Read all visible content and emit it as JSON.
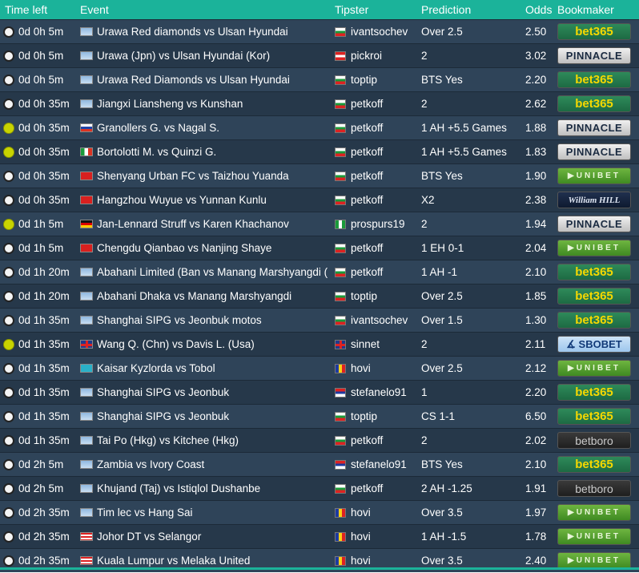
{
  "headers": {
    "time_left": "Time left",
    "event": "Event",
    "tipster": "Tipster",
    "prediction": "Prediction",
    "odds": "Odds",
    "bookmaker": "Bookmaker"
  },
  "rows": [
    {
      "sport": "football-icon",
      "time": "0d 0h 5m",
      "flag": "world",
      "event": "Urawa Red diamonds vs Ulsan Hyundai",
      "tflag": "bulgaria",
      "tipster": "ivantsochev",
      "prediction": "Over 2.5",
      "odds": "2.50",
      "bookmaker": "bet365"
    },
    {
      "sport": "football-icon",
      "time": "0d 0h 5m",
      "flag": "world",
      "event": "Urawa (Jpn) vs Ulsan Hyundai (Kor)",
      "tflag": "austria",
      "tipster": "pickroi",
      "prediction": "2",
      "odds": "3.02",
      "bookmaker": "PINNACLE"
    },
    {
      "sport": "football-icon",
      "time": "0d 0h 5m",
      "flag": "world",
      "event": "Urawa Red Diamonds vs Ulsan Hyundai",
      "tflag": "bulgaria",
      "tipster": "toptip",
      "prediction": "BTS Yes",
      "odds": "2.20",
      "bookmaker": "bet365"
    },
    {
      "sport": "football-icon",
      "time": "0d 0h 35m",
      "flag": "world",
      "event": "Jiangxi Liansheng vs Kunshan",
      "tflag": "bulgaria",
      "tipster": "petkoff",
      "prediction": "2",
      "odds": "2.62",
      "bookmaker": "bet365"
    },
    {
      "sport": "tennis-icon",
      "time": "0d 0h 35m",
      "flag": "slovakia",
      "event": "Granollers G. vs Nagal S.",
      "tflag": "bulgaria",
      "tipster": "petkoff",
      "prediction": "1 AH +5.5 Games",
      "odds": "1.88",
      "bookmaker": "PINNACLE"
    },
    {
      "sport": "tennis-icon",
      "time": "0d 0h 35m",
      "flag": "italy",
      "event": "Bortolotti M. vs Quinzi G.",
      "tflag": "bulgaria",
      "tipster": "petkoff",
      "prediction": "1 AH +5.5 Games",
      "odds": "1.83",
      "bookmaker": "PINNACLE"
    },
    {
      "sport": "football-icon",
      "time": "0d 0h 35m",
      "flag": "china",
      "event": "Shenyang Urban FC vs Taizhou Yuanda",
      "tflag": "bulgaria",
      "tipster": "petkoff",
      "prediction": "BTS Yes",
      "odds": "1.90",
      "bookmaker": "UNIBET"
    },
    {
      "sport": "football-icon",
      "time": "0d 0h 35m",
      "flag": "china",
      "event": "Hangzhou Wuyue vs Yunnan Kunlu",
      "tflag": "bulgaria",
      "tipster": "petkoff",
      "prediction": "X2",
      "odds": "2.38",
      "bookmaker": "William HILL"
    },
    {
      "sport": "tennis-icon",
      "time": "0d 1h 5m",
      "flag": "germany",
      "event": "Jan-Lennard Struff vs Karen Khachanov",
      "tflag": "nigeria",
      "tipster": "prospurs19",
      "prediction": "2",
      "odds": "1.94",
      "bookmaker": "PINNACLE"
    },
    {
      "sport": "football-icon",
      "time": "0d 1h 5m",
      "flag": "china",
      "event": "Chengdu Qianbao vs Nanjing Shaye",
      "tflag": "bulgaria",
      "tipster": "petkoff",
      "prediction": "1 EH 0-1",
      "odds": "2.04",
      "bookmaker": "UNIBET"
    },
    {
      "sport": "football-icon",
      "time": "0d 1h 20m",
      "flag": "world",
      "event": "Abahani Limited (Ban vs Manang Marshyangdi (",
      "tflag": "bulgaria",
      "tipster": "petkoff",
      "prediction": "1 AH -1",
      "odds": "2.10",
      "bookmaker": "bet365"
    },
    {
      "sport": "football-icon",
      "time": "0d 1h 20m",
      "flag": "world",
      "event": "Abahani Dhaka vs Manang Marshyangdi",
      "tflag": "bulgaria",
      "tipster": "toptip",
      "prediction": "Over 2.5",
      "odds": "1.85",
      "bookmaker": "bet365"
    },
    {
      "sport": "football-icon",
      "time": "0d 1h 35m",
      "flag": "world",
      "event": "Shanghai SIPG vs Jeonbuk motos",
      "tflag": "bulgaria",
      "tipster": "ivantsochev",
      "prediction": "Over 1.5",
      "odds": "1.30",
      "bookmaker": "bet365"
    },
    {
      "sport": "tennis-icon",
      "time": "0d 1h 35m",
      "flag": "uk",
      "event": "Wang Q. (Chn) vs Davis L. (Usa)",
      "tflag": "uk",
      "tipster": "sinnet",
      "prediction": "2",
      "odds": "2.11",
      "bookmaker": "SBOBET"
    },
    {
      "sport": "football-icon",
      "time": "0d 1h 35m",
      "flag": "kazakhstan",
      "event": "Kaisar Kyzlorda vs Tobol",
      "tflag": "romania",
      "tipster": "hovi",
      "prediction": "Over 2.5",
      "odds": "2.12",
      "bookmaker": "UNIBET"
    },
    {
      "sport": "football-icon",
      "time": "0d 1h 35m",
      "flag": "world",
      "event": "Shanghai SIPG vs Jeonbuk",
      "tflag": "serbia",
      "tipster": "stefanelo91",
      "prediction": "1",
      "odds": "2.20",
      "bookmaker": "bet365"
    },
    {
      "sport": "football-icon",
      "time": "0d 1h 35m",
      "flag": "world",
      "event": "Shanghai SIPG vs Jeonbuk",
      "tflag": "bulgaria",
      "tipster": "toptip",
      "prediction": "CS 1-1",
      "odds": "6.50",
      "bookmaker": "bet365"
    },
    {
      "sport": "football-icon",
      "time": "0d 1h 35m",
      "flag": "world",
      "event": "Tai Po (Hkg) vs Kitchee (Hkg)",
      "tflag": "bulgaria",
      "tipster": "petkoff",
      "prediction": "2",
      "odds": "2.02",
      "bookmaker": "betboro"
    },
    {
      "sport": "football-icon",
      "time": "0d 2h 5m",
      "flag": "world",
      "event": "Zambia vs Ivory Coast",
      "tflag": "serbia",
      "tipster": "stefanelo91",
      "prediction": "BTS Yes",
      "odds": "2.10",
      "bookmaker": "bet365"
    },
    {
      "sport": "football-icon",
      "time": "0d 2h 5m",
      "flag": "world",
      "event": "Khujand (Taj) vs Istiqlol Dushanbe",
      "tflag": "bulgaria",
      "tipster": "petkoff",
      "prediction": "2 AH -1.25",
      "odds": "1.91",
      "bookmaker": "betboro"
    },
    {
      "sport": "football-icon",
      "time": "0d 2h 35m",
      "flag": "world",
      "event": "Tim lec vs Hang Sai",
      "tflag": "romania",
      "tipster": "hovi",
      "prediction": "Over 3.5",
      "odds": "1.97",
      "bookmaker": "UNIBET"
    },
    {
      "sport": "football-icon",
      "time": "0d 2h 35m",
      "flag": "malaysia",
      "event": "Johor DT vs Selangor",
      "tflag": "romania",
      "tipster": "hovi",
      "prediction": "1 AH -1.5",
      "odds": "1.78",
      "bookmaker": "UNIBET"
    },
    {
      "sport": "football-icon",
      "time": "0d 2h 35m",
      "flag": "malaysia",
      "event": "Kuala Lumpur vs Melaka United",
      "tflag": "romania",
      "tipster": "hovi",
      "prediction": "Over 3.5",
      "odds": "2.40",
      "bookmaker": "UNIBET"
    }
  ],
  "colors": {
    "header_bg": "#1bb39a",
    "row_even": "#2f4459",
    "row_odd": "#26384a",
    "text": "#ffffff"
  }
}
